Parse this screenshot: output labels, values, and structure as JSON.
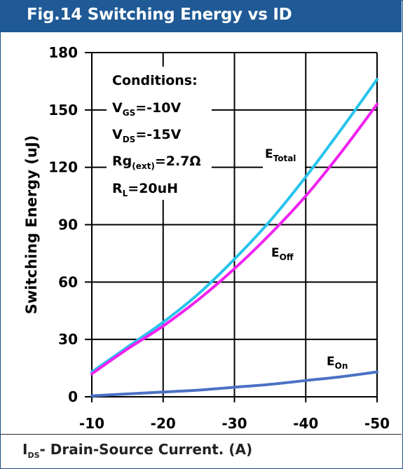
{
  "title": "Fig.14 Switching Energy vs ID",
  "footer": {
    "main": "I",
    "sub": "DS",
    "rest": "- Drain-Source Current. (A)"
  },
  "conditions": {
    "heading": "Conditions:",
    "vgs": {
      "main": "V",
      "sub": "GS",
      "rest": "=-10V"
    },
    "vds": {
      "main": "V",
      "sub": "DS",
      "rest": "=-15V"
    },
    "rg": {
      "main": "Rg",
      "sub": "(ext)",
      "rest": "=2.7Ω"
    },
    "rl": {
      "main": "R",
      "sub": "L",
      "rest": "=20uH"
    }
  },
  "labels": {
    "total": {
      "main": "E",
      "sub": "Total"
    },
    "off": {
      "main": "E",
      "sub": "Off"
    },
    "on": {
      "main": "E",
      "sub": "On"
    }
  },
  "colors": {
    "header": "#1f5a96",
    "total": "#27c4ec",
    "off": "#ee22ee",
    "on": "#4a72c4"
  },
  "chart_data": {
    "type": "line",
    "ylabel": "Switching Energy (uJ)",
    "xlim": [
      -10,
      -50
    ],
    "ylim": [
      0,
      180
    ],
    "x_ticks": [
      "-10",
      "-20",
      "-30",
      "-40",
      "-50"
    ],
    "y_ticks": [
      "0",
      "30",
      "60",
      "90",
      "120",
      "150",
      "180"
    ],
    "x_tick_values": [
      -10,
      -20,
      -30,
      -40,
      -50
    ],
    "y_tick_values": [
      0,
      30,
      60,
      90,
      120,
      150,
      180
    ],
    "grid": true,
    "series": [
      {
        "key": "total",
        "x": [
          -10,
          -15,
          -20,
          -25,
          -30,
          -35,
          -40,
          -45,
          -50
        ],
        "values": [
          13,
          26,
          39,
          54,
          72,
          92,
          115,
          140,
          166
        ]
      },
      {
        "key": "off",
        "x": [
          -10,
          -15,
          -20,
          -25,
          -30,
          -35,
          -40,
          -45,
          -50
        ],
        "values": [
          12,
          25,
          37,
          51,
          67,
          85,
          105,
          128,
          153
        ]
      },
      {
        "key": "on",
        "x": [
          -10,
          -15,
          -20,
          -25,
          -30,
          -35,
          -40,
          -45,
          -50
        ],
        "values": [
          0.5,
          1.5,
          2.5,
          3.5,
          5,
          6.5,
          8.5,
          10.5,
          13
        ]
      }
    ]
  }
}
